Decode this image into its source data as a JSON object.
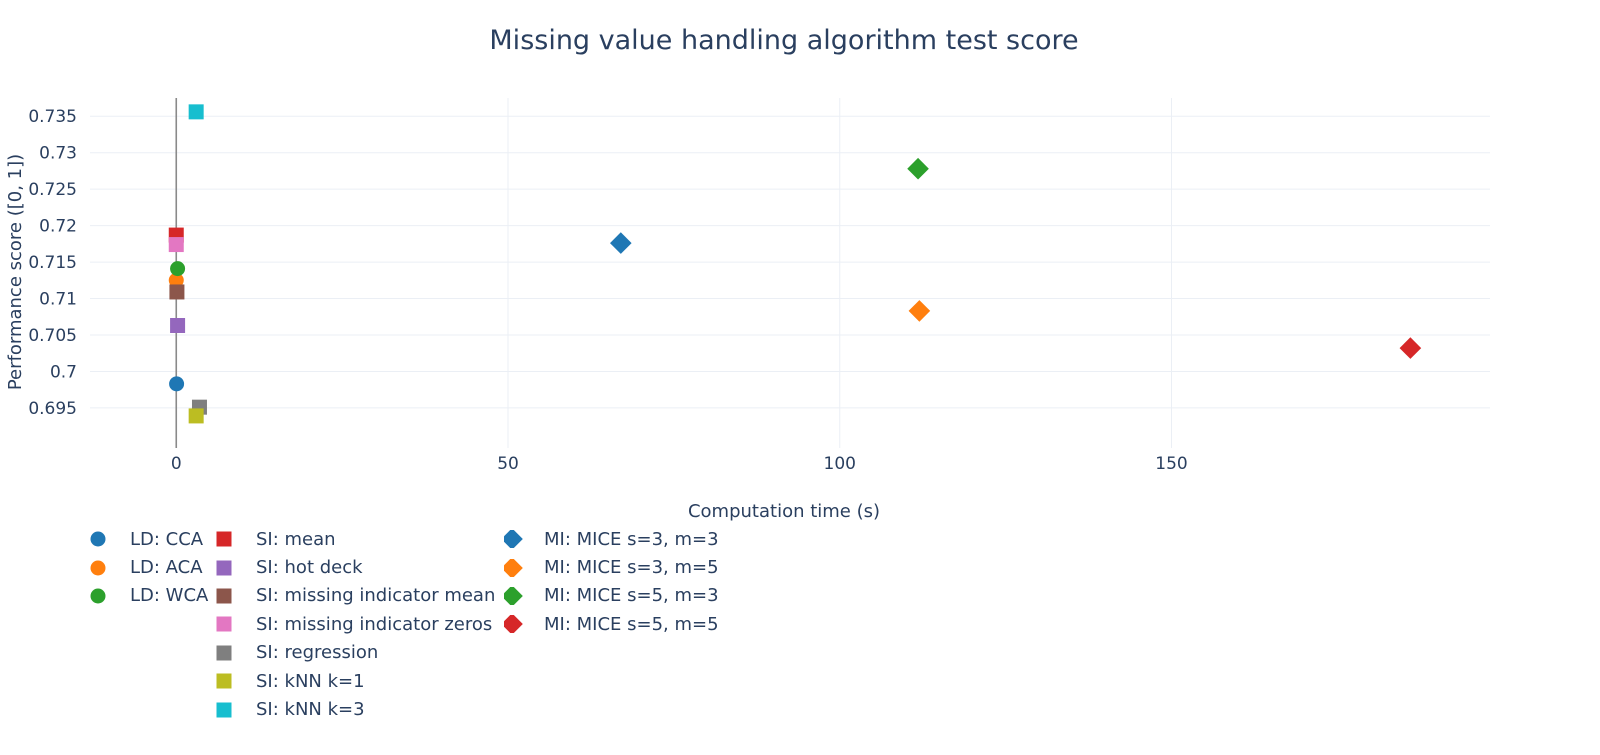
{
  "chart_data": {
    "type": "scatter",
    "title": "Missing value handling algorithm test score",
    "xlabel": "Computation time (s)",
    "ylabel": "Performance score ([0, 1])",
    "xlim": [
      -13,
      198
    ],
    "ylim": [
      0.6895,
      0.7375
    ],
    "x_ticks": [
      0,
      50,
      100,
      150
    ],
    "x_tick_labels": [
      "0",
      "50",
      "100",
      "150"
    ],
    "y_ticks": [
      0.695,
      0.7,
      0.705,
      0.71,
      0.715,
      0.72,
      0.725,
      0.73,
      0.735
    ],
    "y_tick_labels": [
      "0.695",
      "0.7",
      "0.705",
      "0.71",
      "0.715",
      "0.72",
      "0.725",
      "0.73",
      "0.735"
    ],
    "grid": true,
    "legend_position": "bottom-left",
    "series": [
      {
        "name": "LD: CCA",
        "symbol": "circle",
        "color": "#1f77b4",
        "x": [
          0.05
        ],
        "y": [
          0.6983
        ]
      },
      {
        "name": "LD: ACA",
        "symbol": "circle",
        "color": "#ff7f0e",
        "x": [
          0.0
        ],
        "y": [
          0.7125
        ]
      },
      {
        "name": "LD: WCA",
        "symbol": "circle",
        "color": "#2ca02c",
        "x": [
          0.2
        ],
        "y": [
          0.7141
        ]
      },
      {
        "name": "SI: mean",
        "symbol": "square",
        "color": "#d62728",
        "x": [
          0.0
        ],
        "y": [
          0.7187
        ]
      },
      {
        "name": "SI: hot deck",
        "symbol": "square",
        "color": "#9467bd",
        "x": [
          0.2
        ],
        "y": [
          0.7063
        ]
      },
      {
        "name": "SI: missing indicator mean",
        "symbol": "square",
        "color": "#8c564b",
        "x": [
          0.1
        ],
        "y": [
          0.7109
        ]
      },
      {
        "name": "SI: missing indicator zeros",
        "symbol": "square",
        "color": "#e377c2",
        "x": [
          0.0
        ],
        "y": [
          0.7174
        ]
      },
      {
        "name": "SI: regression",
        "symbol": "square",
        "color": "#7f7f7f",
        "x": [
          3.5
        ],
        "y": [
          0.6951
        ]
      },
      {
        "name": "SI: kNN k=1",
        "symbol": "square",
        "color": "#bcbd22",
        "x": [
          3.0
        ],
        "y": [
          0.6939
        ]
      },
      {
        "name": "SI: kNN k=3",
        "symbol": "square",
        "color": "#17becf",
        "x": [
          3.0
        ],
        "y": [
          0.7356
        ]
      },
      {
        "name": "MI: MICE s=3, m=3",
        "symbol": "diamond",
        "color": "#1f77b4",
        "x": [
          67.0
        ],
        "y": [
          0.7176
        ]
      },
      {
        "name": "MI: MICE s=3, m=5",
        "symbol": "diamond",
        "color": "#ff7f0e",
        "x": [
          112.0
        ],
        "y": [
          0.7083
        ]
      },
      {
        "name": "MI: MICE s=5, m=3",
        "symbol": "diamond",
        "color": "#2ca02c",
        "x": [
          111.8
        ],
        "y": [
          0.7278
        ]
      },
      {
        "name": "MI: MICE s=5, m=5",
        "symbol": "diamond",
        "color": "#d62728",
        "x": [
          186.0
        ],
        "y": [
          0.7032
        ]
      }
    ]
  }
}
